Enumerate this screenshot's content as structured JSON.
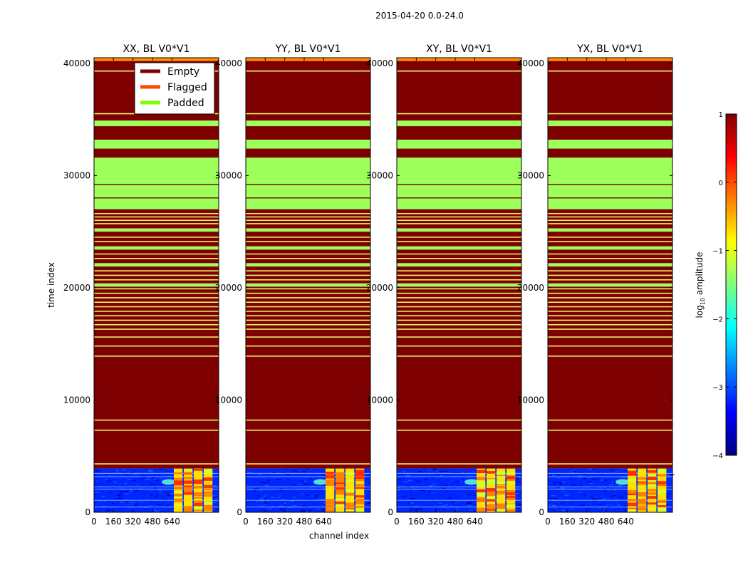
{
  "suptitle": "2015-04-20 0.0-24.0",
  "xlabel": "channel index",
  "ylabel": "time index",
  "legend": {
    "placement": "upper-right of first panel",
    "entries": [
      {
        "label": "Empty",
        "color": "#7f0000"
      },
      {
        "label": "Flagged",
        "color": "#ff4a00"
      },
      {
        "label": "Padded",
        "color": "#7cff00"
      }
    ]
  },
  "colorbar": {
    "label_prefix": "log",
    "label_sub": "10",
    "label_suffix": " amplitude",
    "range": [
      -4,
      1
    ],
    "ticks": [
      "1",
      "0",
      "−1",
      "−2",
      "−3",
      "−4"
    ],
    "tick_values": [
      1,
      0,
      -1,
      -2,
      -3,
      -4
    ],
    "colors": [
      "#00007f",
      "#0000ff",
      "#007fff",
      "#00ffff",
      "#7fff7f",
      "#ffff00",
      "#ff7f00",
      "#ff0000",
      "#7f0000"
    ]
  },
  "colors": {
    "empty": "#7f0000",
    "padded": "#9dff5a",
    "flagged": "#ff8c00",
    "stripe": "#e8f56a"
  },
  "chart_data": {
    "type": "heatmap",
    "title": "2015-04-20 0.0-24.0",
    "xlabel": "channel index",
    "ylabel": "time index",
    "xlim": [
      0,
      1024
    ],
    "ylim": [
      0,
      40500
    ],
    "x_ticks": [
      0,
      160,
      320,
      480,
      640
    ],
    "x_tick_labels": [
      "0",
      "160",
      "320",
      "480",
      "640"
    ],
    "y_ticks": [
      0,
      10000,
      20000,
      30000,
      40000
    ],
    "y_tick_labels": [
      "0",
      "10000",
      "20000",
      "30000",
      "40000"
    ],
    "panels": [
      {
        "title": "XX, BL V0*V1"
      },
      {
        "title": "YY, BL V0*V1"
      },
      {
        "title": "XY, BL V0*V1"
      },
      {
        "title": "YX, BL V0*V1"
      }
    ],
    "data_region": {
      "time_range": [
        0,
        3900
      ],
      "note": "noisy low-amplitude data (~-3 log10), bright blocks at high channels"
    },
    "empty_region": {
      "time_range": [
        3900,
        40500
      ]
    },
    "padded_bands": [
      [
        27000,
        31600
      ],
      [
        32400,
        33200
      ],
      [
        34400,
        34900
      ],
      [
        20100,
        20400
      ],
      [
        21900,
        22200
      ],
      [
        23400,
        23700
      ],
      [
        25000,
        25300
      ]
    ],
    "stripes": [
      4300,
      7300,
      8200,
      13900,
      14800,
      15600,
      16300,
      16700,
      17100,
      17500,
      17900,
      18300,
      18700,
      19100,
      19500,
      19900,
      20700,
      21100,
      21500,
      22600,
      23000,
      24100,
      24500,
      25700,
      26000,
      26300,
      26600,
      35500,
      39300
    ],
    "flagged_top": [
      40200,
      40500
    ]
  }
}
